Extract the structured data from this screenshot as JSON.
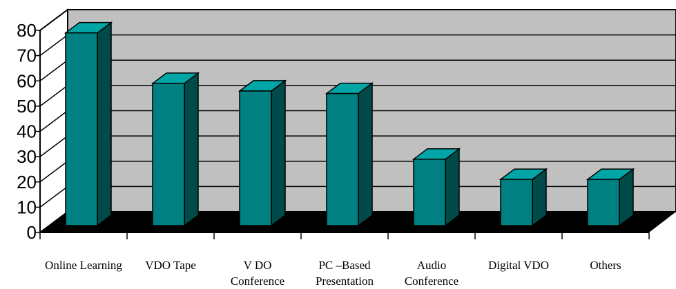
{
  "chart_data": {
    "type": "bar",
    "title": "",
    "xlabel": "",
    "ylabel": "",
    "ylim": [
      0,
      80
    ],
    "yticks": [
      0,
      10,
      20,
      30,
      40,
      50,
      60,
      70,
      80
    ],
    "categories": [
      [
        "Online Learning"
      ],
      [
        "VDO Tape"
      ],
      [
        "V DO",
        "Conference"
      ],
      [
        "PC –Based",
        "Presentation"
      ],
      [
        "Audio",
        "Conference"
      ],
      [
        "Digital VDO"
      ],
      [
        "Others"
      ]
    ],
    "values": [
      79,
      59,
      56,
      55,
      29,
      21,
      21
    ],
    "grid": true,
    "legend": "none",
    "colors": {
      "bar_front": "#008080",
      "bar_side": "#004a4a",
      "bar_top": "#00a5a5",
      "back_wall": "#c0c0c0",
      "floor": "#000000"
    }
  }
}
